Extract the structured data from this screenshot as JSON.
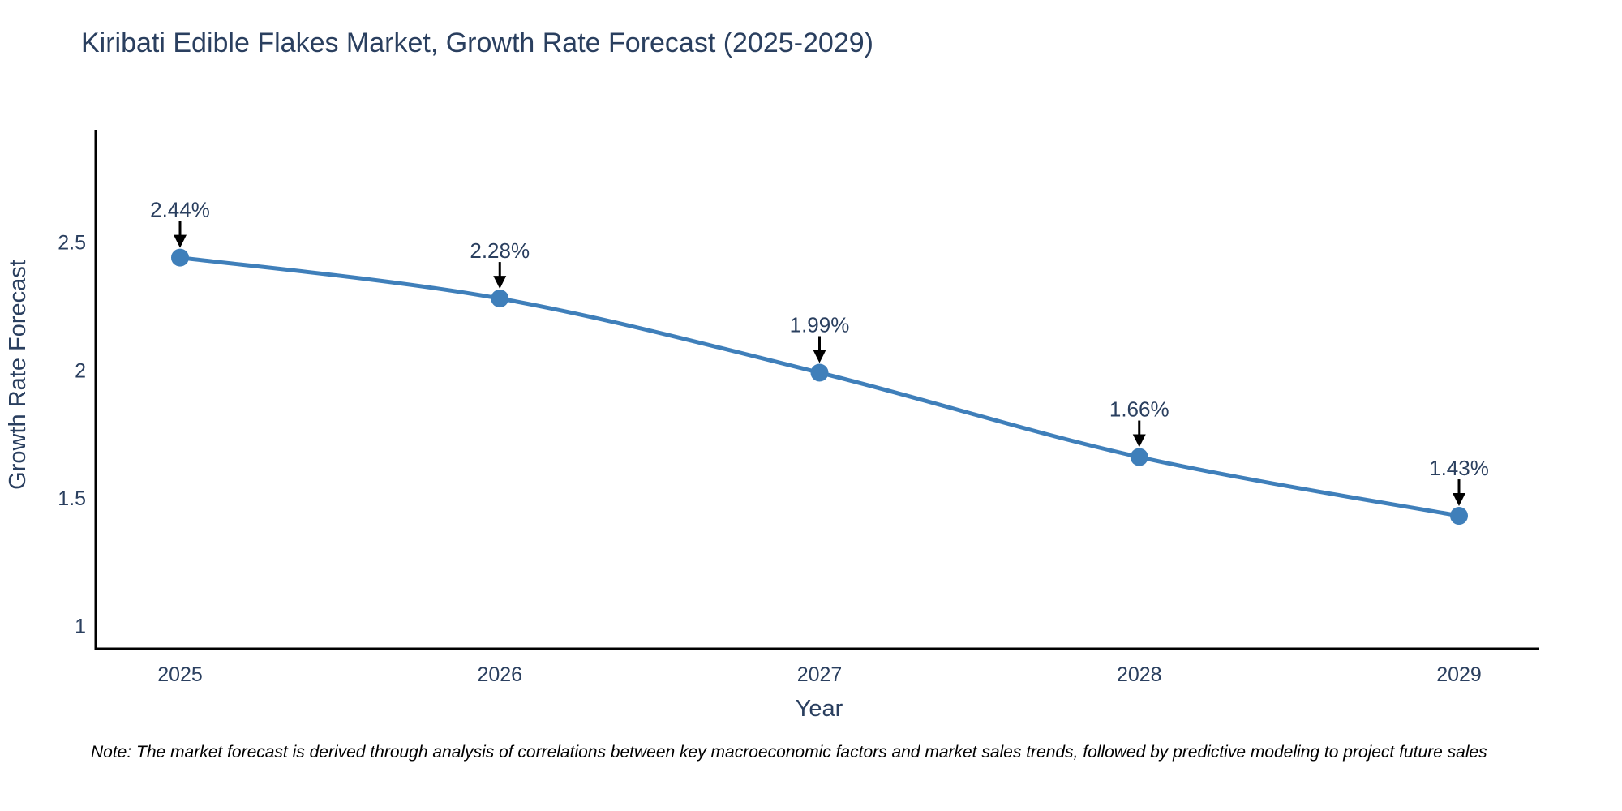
{
  "note": "Note: The market forecast is derived through analysis of correlations between key macroeconomic factors and market sales trends, followed by predictive modeling to project future sales",
  "chart_data": {
    "type": "line",
    "title": "Kiribati Edible Flakes Market, Growth Rate Forecast (2025-2029)",
    "xlabel": "Year",
    "ylabel": "Growth Rate Forecast",
    "x": [
      2025,
      2026,
      2027,
      2028,
      2029
    ],
    "xtick_labels": [
      "2025",
      "2026",
      "2027",
      "2028",
      "2029"
    ],
    "series": [
      {
        "name": "Growth Rate Forecast",
        "values": [
          2.44,
          2.28,
          1.99,
          1.66,
          1.43
        ]
      }
    ],
    "point_labels": [
      "2.44%",
      "2.28%",
      "1.99%",
      "1.66%",
      "1.43%"
    ],
    "yticks": [
      1,
      1.5,
      2,
      2.5
    ],
    "ytick_labels": [
      "1",
      "1.5",
      "2",
      "2.5"
    ],
    "ylim": [
      0.91,
      2.94
    ],
    "grid": false,
    "legend_position": "none",
    "colors": {
      "line": "#3f7fba",
      "marker": "#3f7fba",
      "annotation_arrow": "#000000",
      "axis": "#000000",
      "text": "#2a3f5f"
    }
  }
}
